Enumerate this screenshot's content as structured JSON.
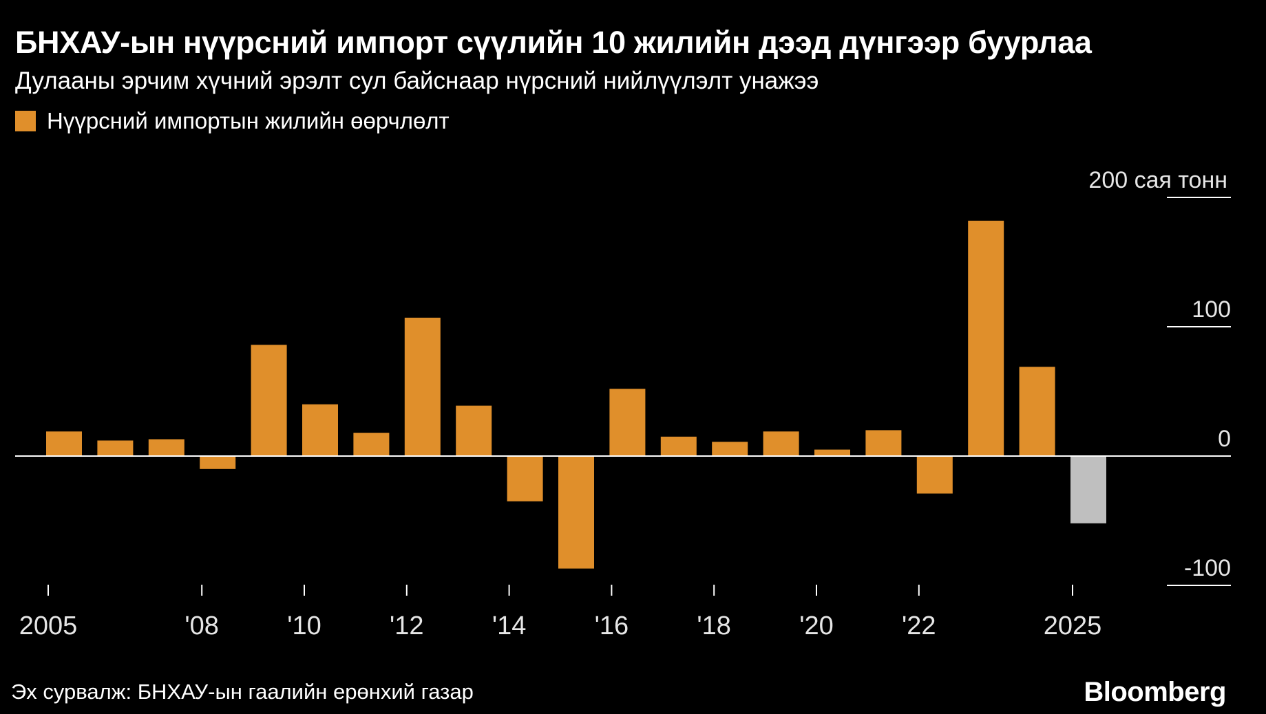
{
  "header": {
    "title": "БНХАУ-ын нүүрсний импорт сүүлийн 10 жилийн дээд дүнгээр буурлаа",
    "subtitle": "Дулааны эрчим хүчний эрэлт сул байснаар нүрсний нийлүүлэлт унажээ"
  },
  "legend": {
    "label": "Нүүрсний импортын жилийн өөрчлөлт",
    "color": "#e08f2b"
  },
  "footer": {
    "source": "Эх сурвалж: БНХАУ-ын гаалийн ерөнхий газар",
    "brand": "Bloomberg"
  },
  "colors": {
    "bar": "#e08f2b",
    "bar_estimate": "#bfbfbf",
    "background": "#000000",
    "axis": "#ffffff",
    "tick_text": "#e6e6e6"
  },
  "chart_data": {
    "type": "bar",
    "title": "БНХАУ-ын нүүрсний импорт сүүлийн 10 жилийн дээд дүнгээр буурлаа",
    "ylabel": "200 сая тонн",
    "ylim": [
      -100,
      200
    ],
    "y_ticks": [
      {
        "value": 200,
        "label": "200 сая тонн"
      },
      {
        "value": 100,
        "label": "100"
      },
      {
        "value": 0,
        "label": "0"
      },
      {
        "value": -100,
        "label": "-100"
      }
    ],
    "x_ticks": [
      {
        "year": 2005,
        "label": "2005"
      },
      {
        "year": 2008,
        "label": "'08"
      },
      {
        "year": 2010,
        "label": "'10"
      },
      {
        "year": 2012,
        "label": "'12"
      },
      {
        "year": 2014,
        "label": "'14"
      },
      {
        "year": 2016,
        "label": "'16"
      },
      {
        "year": 2018,
        "label": "'18"
      },
      {
        "year": 2020,
        "label": "'20"
      },
      {
        "year": 2022,
        "label": "'22"
      },
      {
        "year": 2025,
        "label": "2025"
      }
    ],
    "series": [
      {
        "name": "Нүүрсний импортын жилийн өөрчлөлт",
        "years": [
          2005,
          2006,
          2007,
          2008,
          2009,
          2010,
          2011,
          2012,
          2013,
          2014,
          2015,
          2016,
          2017,
          2018,
          2019,
          2020,
          2021,
          2022,
          2023,
          2024,
          2025
        ],
        "values": [
          19,
          12,
          13,
          -10,
          86,
          40,
          18,
          107,
          39,
          -35,
          -87,
          52,
          15,
          11,
          19,
          5,
          20,
          -29,
          182,
          69,
          -52
        ],
        "estimate": [
          false,
          false,
          false,
          false,
          false,
          false,
          false,
          false,
          false,
          false,
          false,
          false,
          false,
          false,
          false,
          false,
          false,
          false,
          false,
          false,
          true
        ]
      }
    ]
  }
}
